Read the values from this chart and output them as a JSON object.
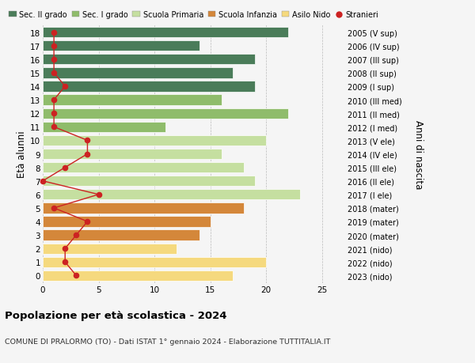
{
  "ages": [
    18,
    17,
    16,
    15,
    14,
    13,
    12,
    11,
    10,
    9,
    8,
    7,
    6,
    5,
    4,
    3,
    2,
    1,
    0
  ],
  "bar_values": [
    22,
    14,
    19,
    17,
    19,
    16,
    22,
    11,
    20,
    16,
    18,
    19,
    23,
    18,
    15,
    14,
    12,
    20,
    17
  ],
  "bar_colors": [
    "#4a7c59",
    "#4a7c59",
    "#4a7c59",
    "#4a7c59",
    "#4a7c59",
    "#8fbc6b",
    "#8fbc6b",
    "#8fbc6b",
    "#c5dfa0",
    "#c5dfa0",
    "#c5dfa0",
    "#c5dfa0",
    "#c5dfa0",
    "#d4873a",
    "#d4873a",
    "#d4873a",
    "#f5d97e",
    "#f5d97e",
    "#f5d97e"
  ],
  "stranieri_values": [
    1,
    1,
    1,
    1,
    2,
    1,
    1,
    1,
    4,
    4,
    2,
    0,
    5,
    1,
    4,
    3,
    2,
    2,
    3
  ],
  "right_labels": [
    "2005 (V sup)",
    "2006 (IV sup)",
    "2007 (III sup)",
    "2008 (II sup)",
    "2009 (I sup)",
    "2010 (III med)",
    "2011 (II med)",
    "2012 (I med)",
    "2013 (V ele)",
    "2014 (IV ele)",
    "2015 (III ele)",
    "2016 (II ele)",
    "2017 (I ele)",
    "2018 (mater)",
    "2019 (mater)",
    "2020 (mater)",
    "2021 (nido)",
    "2022 (nido)",
    "2023 (nido)"
  ],
  "legend_labels": [
    "Sec. II grado",
    "Sec. I grado",
    "Scuola Primaria",
    "Scuola Infanzia",
    "Asilo Nido",
    "Stranieri"
  ],
  "legend_colors": [
    "#4a7c59",
    "#8fbc6b",
    "#c5dfa0",
    "#d4873a",
    "#f5d97e",
    "#cc2222"
  ],
  "title": "Popolazione per età scolastica - 2024",
  "subtitle": "COMUNE DI PRALORMO (TO) - Dati ISTAT 1° gennaio 2024 - Elaborazione TUTTITALIA.IT",
  "ylabel": "Età alunni",
  "right_ylabel": "Anni di nascita",
  "xlabel_vals": [
    0,
    5,
    10,
    15,
    20,
    25
  ],
  "xlim": [
    0,
    27
  ],
  "bg_color": "#f5f5f5",
  "stranieri_color": "#cc2222",
  "bar_height": 0.78
}
